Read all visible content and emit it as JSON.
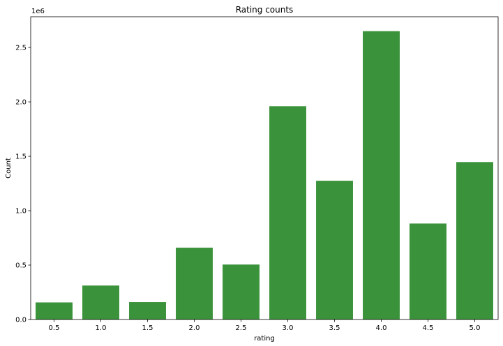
{
  "chart_data": {
    "type": "bar",
    "title": "Rating counts",
    "xlabel": "rating",
    "ylabel": "Count",
    "offset_text": "1e6",
    "categories": [
      "0.5",
      "1.0",
      "1.5",
      "2.0",
      "2.5",
      "3.0",
      "3.5",
      "4.0",
      "4.5",
      "5.0"
    ],
    "values": [
      157000,
      312000,
      160000,
      660000,
      505000,
      1960000,
      1275000,
      2650000,
      882000,
      1447000
    ],
    "ylim": [
      0,
      2782500
    ],
    "yticks": [
      0,
      500000,
      1000000,
      1500000,
      2000000,
      2500000
    ],
    "ytick_labels": [
      "0.0",
      "0.5",
      "1.0",
      "1.5",
      "2.0",
      "2.5"
    ],
    "grid": false,
    "bar_color": "#3a923a"
  }
}
